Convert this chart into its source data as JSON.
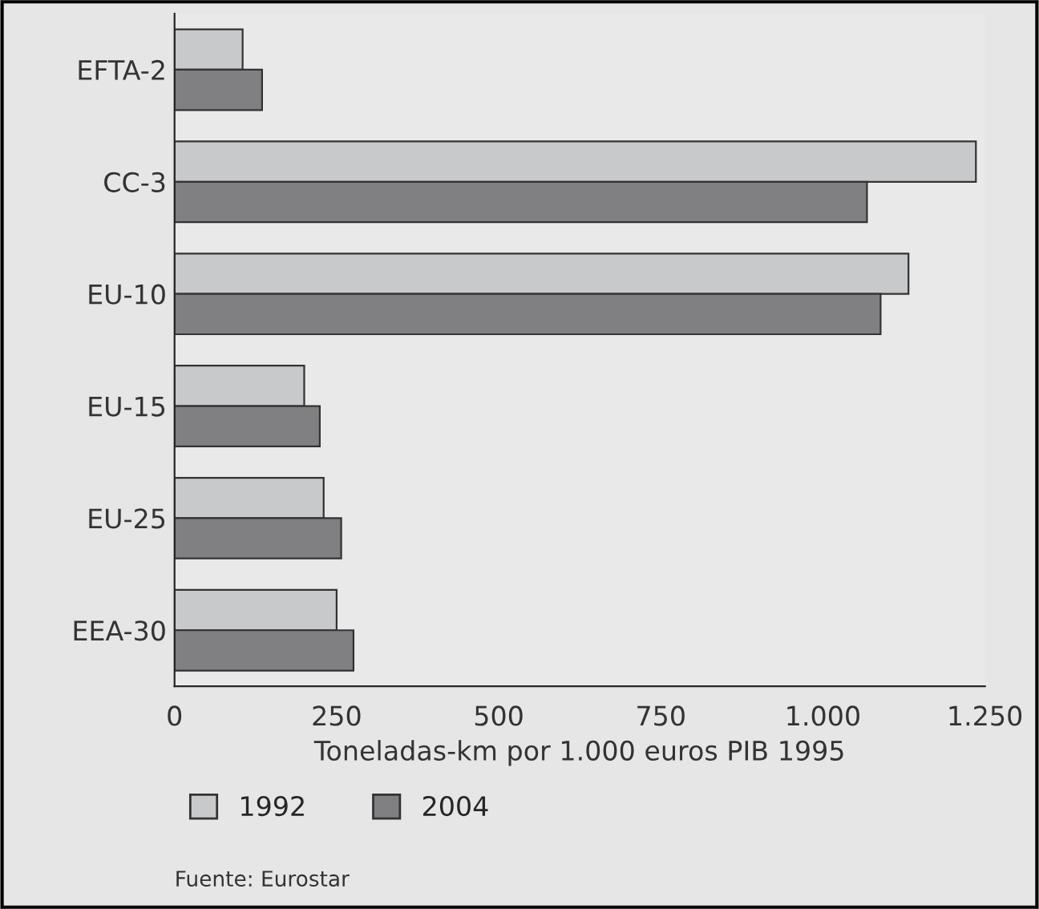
{
  "chart_data": {
    "type": "bar",
    "orientation": "horizontal",
    "xlabel": "Toneladas-km por 1.000 euros PIB 1995",
    "categories": [
      "EFTA-2",
      "CC-3",
      "EU-10",
      "EU-15",
      "EU-25",
      "EEA-30"
    ],
    "series": [
      {
        "name": "1992",
        "color": "#c8c9cb",
        "values": [
          105,
          1236,
          1132,
          200,
          230,
          250
        ]
      },
      {
        "name": "2004",
        "color": "#808083",
        "values": [
          135,
          1068,
          1089,
          224,
          257,
          276
        ]
      }
    ],
    "xlim": [
      0,
      1250
    ],
    "xticks": [
      0,
      250,
      500,
      750,
      {
        "value": 1000,
        "label": "1.000"
      },
      {
        "value": 1250,
        "label": "1.250"
      }
    ],
    "legend": "bottom",
    "grid": false,
    "annotations": [
      "Fuente: Eurostar"
    ]
  }
}
